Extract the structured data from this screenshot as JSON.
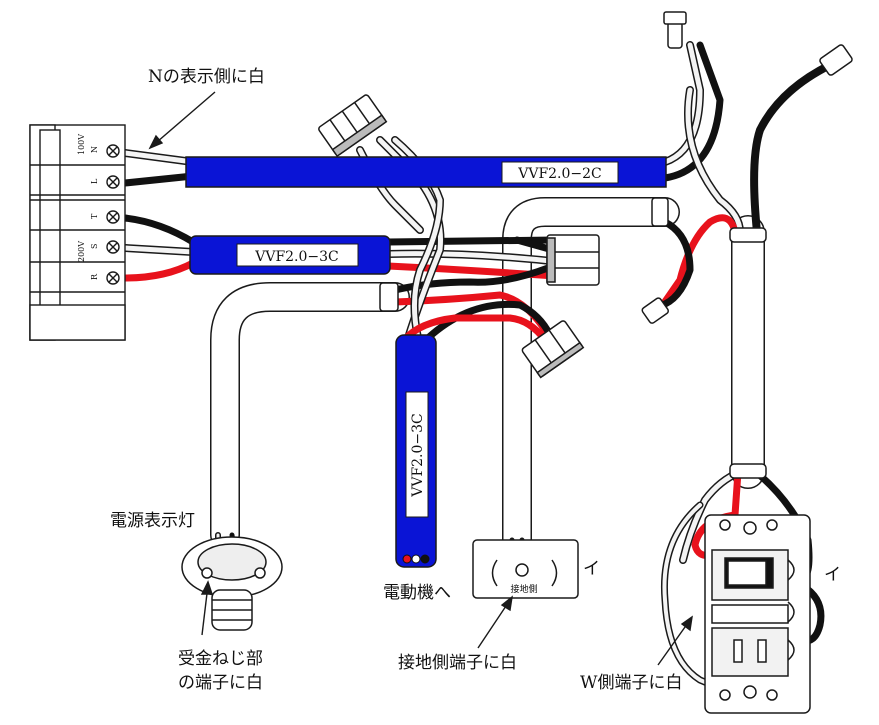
{
  "labels": {
    "n_white": "Nの表示側に白",
    "cable_2c": "VVF2.0−2C",
    "cable_3c_h": "VVF2.0−3C",
    "cable_3c_v": "VVF2.0−3C",
    "lamp": "電源表示灯",
    "motor": "電動機へ",
    "screw_terminal_1": "受金ねじ部",
    "screw_terminal_2": "の端子に白",
    "ground_terminal": "接地側端子に白",
    "w_terminal": "W側端子に白",
    "i_left": "イ",
    "i_right": "イ",
    "ground_small": "接地側"
  },
  "terminal_block": {
    "v100": "100V",
    "v200": "200V",
    "n": "N",
    "l": "L",
    "t": "T",
    "s": "S",
    "r": "R"
  },
  "colors": {
    "sheath_blue": "#0a14d6",
    "wire_red": "#e8121c",
    "wire_black": "#111111",
    "wire_white": "#f4f4f4",
    "outline": "#1a1a1a"
  }
}
